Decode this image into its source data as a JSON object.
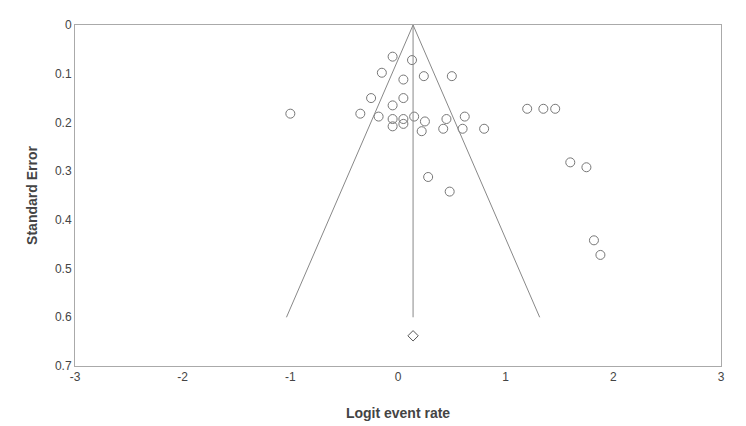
{
  "chart_data": {
    "type": "scatter",
    "xlabel": "Logit event rate",
    "ylabel": "Standard Error",
    "xlim": [
      -3,
      3
    ],
    "ylim": [
      0.7,
      0.0
    ],
    "xticks": [
      -3,
      -2,
      -1,
      0,
      1,
      2,
      3
    ],
    "yticks": [
      0.0,
      0.1,
      0.2,
      0.3,
      0.4,
      0.5,
      0.6,
      0.7
    ],
    "grid": false,
    "series": [
      {
        "type": "scatter",
        "marker": "circle-open",
        "color": "#777777",
        "x": [
          -0.05,
          0.13,
          -0.15,
          0.05,
          -0.25,
          -0.05,
          0.05,
          -0.35,
          -0.18,
          -0.05,
          0.05,
          0.15,
          -0.05,
          0.05,
          0.25,
          0.45,
          0.62,
          0.22,
          0.42,
          0.6,
          0.8,
          1.35,
          1.6,
          1.75,
          1.82,
          1.88,
          -1.0,
          0.28,
          0.48,
          0.24,
          0.5,
          1.2,
          1.46
        ],
        "y": [
          0.065,
          0.072,
          0.098,
          0.112,
          0.15,
          0.165,
          0.15,
          0.182,
          0.188,
          0.193,
          0.193,
          0.188,
          0.208,
          0.203,
          0.198,
          0.193,
          0.188,
          0.218,
          0.213,
          0.213,
          0.213,
          0.172,
          0.282,
          0.292,
          0.442,
          0.472,
          0.182,
          0.312,
          0.342,
          0.105,
          0.105,
          0.172,
          0.172
        ]
      },
      {
        "type": "line",
        "color": "#888888",
        "x": [
          0.14,
          -1.036
        ],
        "y": [
          0.0,
          0.6
        ]
      },
      {
        "type": "line",
        "color": "#888888",
        "x": [
          0.14,
          1.316
        ],
        "y": [
          0.0,
          0.6
        ]
      },
      {
        "type": "line",
        "color": "#888888",
        "x": [
          0.14,
          0.14
        ],
        "y": [
          0.0,
          0.6
        ]
      },
      {
        "type": "scatter",
        "marker": "diamond-open",
        "color": "#555555",
        "x": [
          0.14
        ],
        "y": [
          0.638
        ]
      }
    ]
  }
}
